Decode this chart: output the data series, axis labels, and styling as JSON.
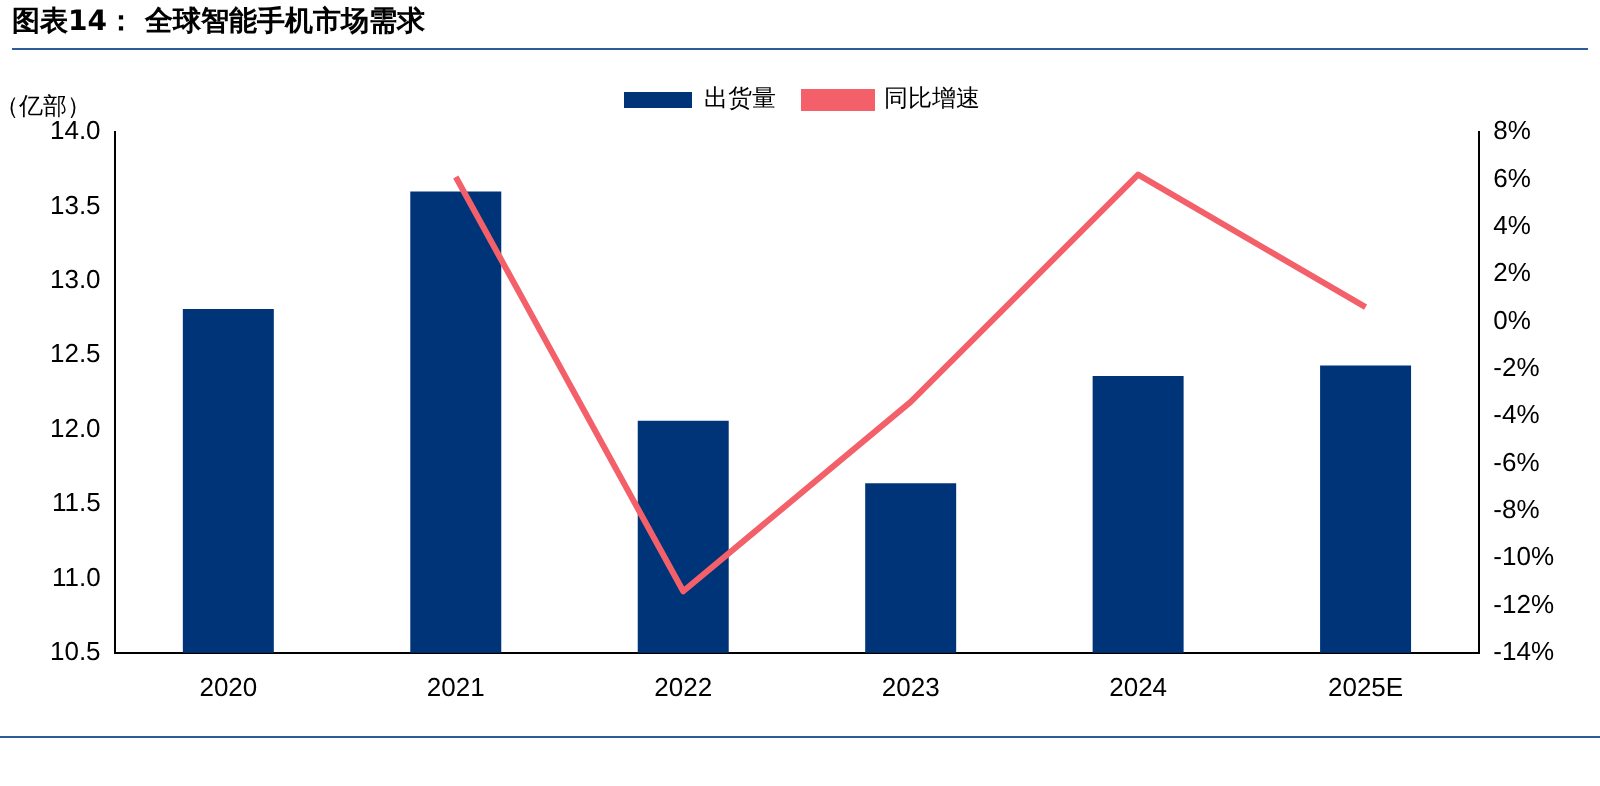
{
  "chart_data": {
    "type": "bar",
    "title": "图表14：  全球智能手机市场需求",
    "ylabel": "（亿部）",
    "categories": [
      "2020",
      "2021",
      "2022",
      "2023",
      "2024",
      "2025E"
    ],
    "series": [
      {
        "name": "出货量",
        "color": "#003478",
        "values": [
          12.81,
          13.6,
          12.06,
          11.64,
          12.36,
          12.43
        ]
      },
      {
        "name": "同比增速",
        "type": "line",
        "axis": "y2",
        "color": "#f4606a",
        "values": [
          null,
          6.1,
          -11.4,
          -3.4,
          6.2,
          0.6
        ]
      }
    ],
    "ylim": [
      10.5,
      14.0
    ],
    "yticks": [
      {
        "value": 10.5,
        "label": "10.5"
      },
      {
        "value": 11,
        "label": "11.0"
      },
      {
        "value": 11.5,
        "label": "11.5"
      },
      {
        "value": 12,
        "label": "12.0"
      },
      {
        "value": 12.5,
        "label": "12.5"
      },
      {
        "value": 13,
        "label": "13.0"
      },
      {
        "value": 13.5,
        "label": "13.5"
      },
      {
        "value": 14,
        "label": "14.0"
      }
    ],
    "y2lim": [
      -14,
      8
    ],
    "y2ticks": [
      {
        "value": -14,
        "label": "-14%"
      },
      {
        "value": -12,
        "label": "-12%"
      },
      {
        "value": -10,
        "label": "-10%"
      },
      {
        "value": -8,
        "label": "-8%"
      },
      {
        "value": -6,
        "label": "-6%"
      },
      {
        "value": -4,
        "label": "-4%"
      },
      {
        "value": -2,
        "label": "-2%"
      },
      {
        "value": 0,
        "label": "0%"
      },
      {
        "value": 2,
        "label": "2%"
      },
      {
        "value": 4,
        "label": "4%"
      },
      {
        "value": 6,
        "label": "6%"
      },
      {
        "value": 8,
        "label": "8%"
      }
    ],
    "grid": false,
    "legend": "top",
    "marker": "none",
    "line_style": "solid"
  }
}
